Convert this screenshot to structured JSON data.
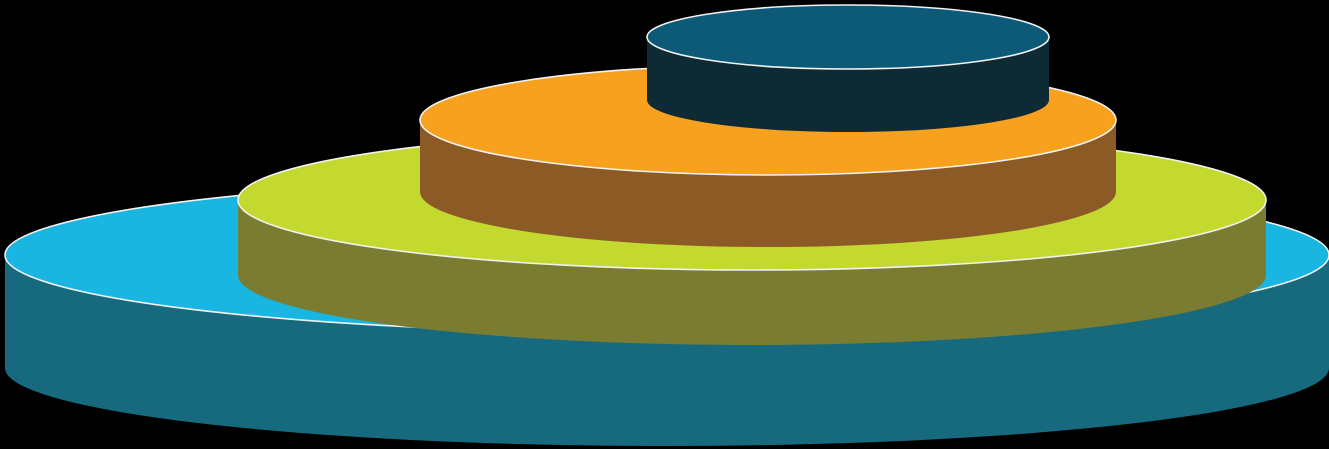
{
  "diagram": {
    "type": "stacked-discs",
    "background": "#000000",
    "outline_color": "#f2f2f2",
    "layers": [
      {
        "id": "base",
        "top_color": "#19b6e2",
        "side_color": "#176a7e"
      },
      {
        "id": "second",
        "top_color": "#c3d92f",
        "side_color": "#797c31"
      },
      {
        "id": "third",
        "top_color": "#f8a11f",
        "side_color": "#8c5a24"
      },
      {
        "id": "top",
        "top_color": "#0d5a78",
        "side_color": "#0d2a35"
      }
    ]
  }
}
